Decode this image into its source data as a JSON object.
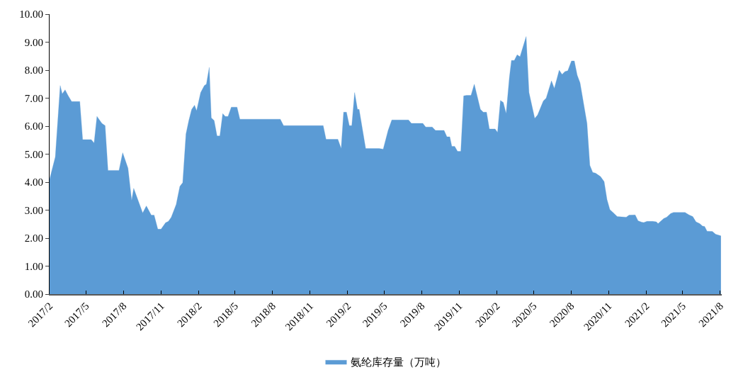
{
  "chart_data": {
    "type": "area",
    "x": [
      "2017-02-01",
      "2017-02-08",
      "2017-02-15",
      "2017-02-27",
      "2017-03-04",
      "2017-03-11",
      "2017-03-18",
      "2017-03-27",
      "2017-04-16",
      "2017-04-23",
      "2017-05-14",
      "2017-05-21",
      "2017-05-28",
      "2017-06-09",
      "2017-06-17",
      "2017-06-24",
      "2017-07-21",
      "2017-07-30",
      "2017-08-12",
      "2017-08-21",
      "2017-08-26",
      "2017-09-17",
      "2017-09-26",
      "2017-10-08",
      "2017-10-15",
      "2017-10-24",
      "2017-11-01",
      "2017-11-12",
      "2017-11-19",
      "2017-11-26",
      "2017-12-08",
      "2017-12-17",
      "2017-12-24",
      "2018-01-01",
      "2018-01-08",
      "2018-01-15",
      "2018-01-22",
      "2018-01-27",
      "2018-02-06",
      "2018-02-15",
      "2018-02-20",
      "2018-02-27",
      "2018-03-04",
      "2018-03-11",
      "2018-03-18",
      "2018-03-25",
      "2018-04-01",
      "2018-04-07",
      "2018-04-14",
      "2018-04-22",
      "2018-05-06",
      "2018-05-13",
      "2018-08-20",
      "2018-08-28",
      "2018-12-03",
      "2018-12-10",
      "2019-01-08",
      "2019-01-16",
      "2019-01-22",
      "2019-01-29",
      "2019-02-05",
      "2019-02-11",
      "2019-02-18",
      "2019-02-25",
      "2019-03-01",
      "2019-03-17",
      "2019-04-19",
      "2019-04-29",
      "2019-05-11",
      "2019-05-20",
      "2019-06-03",
      "2019-06-30",
      "2019-07-07",
      "2019-08-04",
      "2019-08-11",
      "2019-08-27",
      "2019-09-04",
      "2019-09-25",
      "2019-10-02",
      "2019-10-09",
      "2019-10-14",
      "2019-10-21",
      "2019-10-28",
      "2019-11-05",
      "2019-11-12",
      "2019-11-19",
      "2019-11-30",
      "2019-12-08",
      "2019-12-23",
      "2019-12-30",
      "2020-01-07",
      "2020-01-14",
      "2020-01-28",
      "2020-02-03",
      "2020-02-10",
      "2020-02-17",
      "2020-02-24",
      "2020-03-03",
      "2020-03-08",
      "2020-03-15",
      "2020-03-22",
      "2020-03-29",
      "2020-04-13",
      "2020-04-20",
      "2020-05-04",
      "2020-05-11",
      "2020-05-25",
      "2020-06-01",
      "2020-06-14",
      "2020-06-21",
      "2020-07-03",
      "2020-07-10",
      "2020-07-17",
      "2020-07-24",
      "2020-08-02",
      "2020-08-09",
      "2020-08-16",
      "2020-08-23",
      "2020-09-09",
      "2020-09-16",
      "2020-09-23",
      "2020-09-30",
      "2020-10-12",
      "2020-10-21",
      "2020-10-28",
      "2020-11-04",
      "2020-11-13",
      "2020-11-22",
      "2020-12-14",
      "2020-12-21",
      "2021-01-05",
      "2021-01-12",
      "2021-01-21",
      "2021-01-26",
      "2021-02-03",
      "2021-02-17",
      "2021-02-26",
      "2021-03-02",
      "2021-03-16",
      "2021-03-23",
      "2021-04-02",
      "2021-04-09",
      "2021-05-07",
      "2021-05-17",
      "2021-05-26",
      "2021-06-03",
      "2021-06-12",
      "2021-06-19",
      "2021-06-24",
      "2021-06-30",
      "2021-07-13",
      "2021-07-21",
      "2021-08-03"
    ],
    "series": [
      {
        "name": "氨纶库存量（万吨）",
        "color": "#5b9bd5",
        "values": [
          4.1,
          4.5,
          4.9,
          7.45,
          7.15,
          7.3,
          7.1,
          6.88,
          6.88,
          5.52,
          5.52,
          5.4,
          6.35,
          6.1,
          6.02,
          4.42,
          4.42,
          5.05,
          4.5,
          3.35,
          3.78,
          2.9,
          3.15,
          2.82,
          2.82,
          2.32,
          2.32,
          2.55,
          2.6,
          2.75,
          3.2,
          3.85,
          3.98,
          5.72,
          6.2,
          6.6,
          6.75,
          6.55,
          7.2,
          7.45,
          7.5,
          8.1,
          6.3,
          6.2,
          5.65,
          5.65,
          6.45,
          6.35,
          6.35,
          6.68,
          6.68,
          6.25,
          6.25,
          6.02,
          6.02,
          5.53,
          5.53,
          5.2,
          6.5,
          6.5,
          6.02,
          6.02,
          7.2,
          6.6,
          6.6,
          5.2,
          5.2,
          5.18,
          5.85,
          6.22,
          6.22,
          6.22,
          6.1,
          6.1,
          5.97,
          5.97,
          5.85,
          5.85,
          5.62,
          5.62,
          5.28,
          5.28,
          5.1,
          5.1,
          7.08,
          7.1,
          7.1,
          7.5,
          6.6,
          6.5,
          6.5,
          5.9,
          5.9,
          5.78,
          6.92,
          6.85,
          6.45,
          7.75,
          8.35,
          8.35,
          8.55,
          8.48,
          9.2,
          7.2,
          6.28,
          6.4,
          6.9,
          7.0,
          7.62,
          7.35,
          8.0,
          7.85,
          7.95,
          7.98,
          8.33,
          8.33,
          7.82,
          7.55,
          6.1,
          4.6,
          4.35,
          4.32,
          4.2,
          4.02,
          3.38,
          3.02,
          2.9,
          2.77,
          2.75,
          2.82,
          2.83,
          2.62,
          2.57,
          2.56,
          2.6,
          2.6,
          2.58,
          2.52,
          2.7,
          2.75,
          2.88,
          2.92,
          2.92,
          2.83,
          2.77,
          2.58,
          2.52,
          2.43,
          2.42,
          2.25,
          2.24,
          2.14,
          2.08
        ]
      }
    ],
    "xlim": [
      "2017-02-01",
      "2021-08-05"
    ],
    "xticks": [
      {
        "value": "2017-02-01",
        "label": "2017/2"
      },
      {
        "value": "2017-05-01",
        "label": "2017/5"
      },
      {
        "value": "2017-08-01",
        "label": "2017/8"
      },
      {
        "value": "2017-11-01",
        "label": "2017/11"
      },
      {
        "value": "2018-02-01",
        "label": "2018/2"
      },
      {
        "value": "2018-05-01",
        "label": "2018/5"
      },
      {
        "value": "2018-08-01",
        "label": "2018/8"
      },
      {
        "value": "2018-11-01",
        "label": "2018/11"
      },
      {
        "value": "2019-02-01",
        "label": "2019/2"
      },
      {
        "value": "2019-05-01",
        "label": "2019/5"
      },
      {
        "value": "2019-08-01",
        "label": "2019/8"
      },
      {
        "value": "2019-11-01",
        "label": "2019/11"
      },
      {
        "value": "2020-02-01",
        "label": "2020/2"
      },
      {
        "value": "2020-05-01",
        "label": "2020/5"
      },
      {
        "value": "2020-08-01",
        "label": "2020/8"
      },
      {
        "value": "2020-11-01",
        "label": "2020/11"
      },
      {
        "value": "2021-02-01",
        "label": "2021/2"
      },
      {
        "value": "2021-05-01",
        "label": "2021/5"
      },
      {
        "value": "2021-08-01",
        "label": "2021/8"
      }
    ],
    "ylim": [
      0,
      10
    ],
    "yticks": [
      {
        "value": 0,
        "label": "0.00"
      },
      {
        "value": 1,
        "label": "1.00"
      },
      {
        "value": 2,
        "label": "2.00"
      },
      {
        "value": 3,
        "label": "3.00"
      },
      {
        "value": 4,
        "label": "4.00"
      },
      {
        "value": 5,
        "label": "5.00"
      },
      {
        "value": 6,
        "label": "6.00"
      },
      {
        "value": 7,
        "label": "7.00"
      },
      {
        "value": 8,
        "label": "8.00"
      },
      {
        "value": 9,
        "label": "9.00"
      },
      {
        "value": 10,
        "label": "10.00"
      }
    ],
    "legend": "bottom"
  }
}
